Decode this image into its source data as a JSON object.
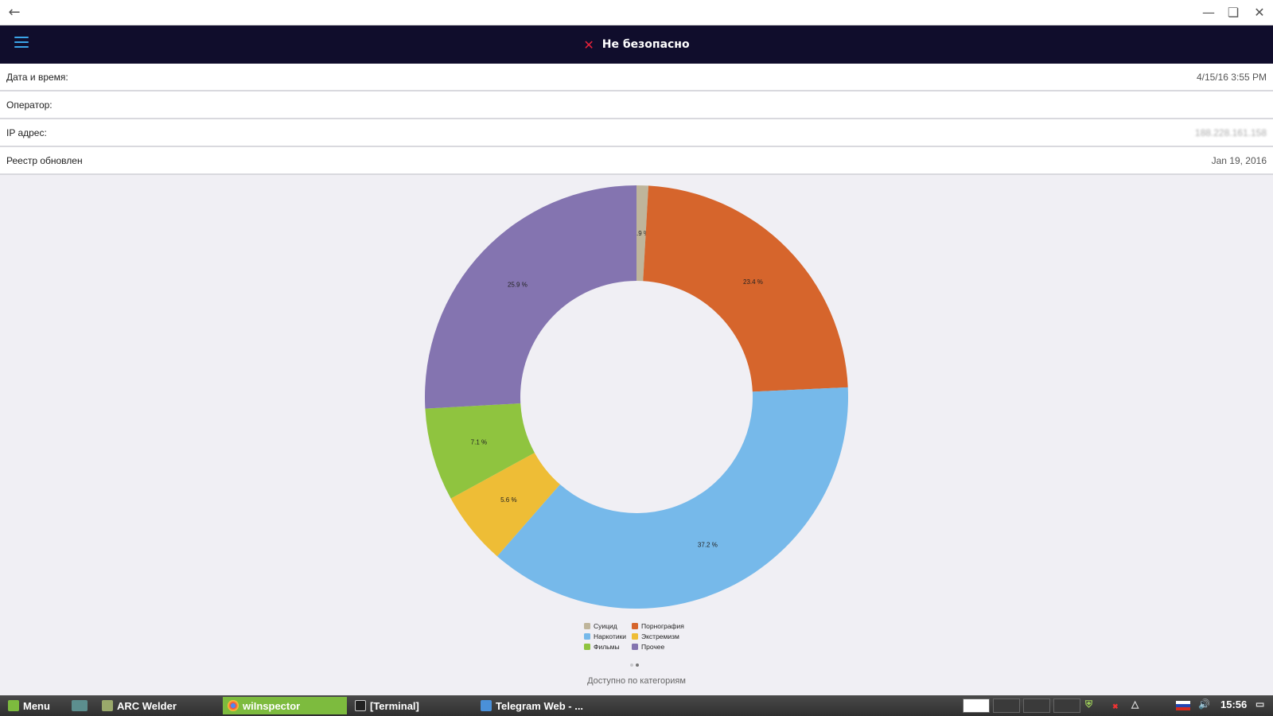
{
  "window": {
    "back_icon": "arrow-left-icon",
    "minimize_icon": "minimize-icon",
    "maximize_icon": "maximize-icon",
    "close_icon": "close-icon"
  },
  "header": {
    "menu_icon": "hamburger-icon",
    "status_icon": "cross-icon",
    "status_text": "Не безопасно",
    "status_color": "#e8223a",
    "bg_color": "#100d2c"
  },
  "info": [
    {
      "label": "Дата и время:",
      "value": "4/15/16 3:55 PM"
    },
    {
      "label": "Оператор:",
      "value": ""
    },
    {
      "label": "IP адрес:",
      "value": "188.228.161.158"
    },
    {
      "label": "Реестр обновлен",
      "value": "Jan 19, 2016"
    }
  ],
  "chart_data": {
    "type": "pie",
    "donut": true,
    "slices": [
      {
        "name": "Суицид",
        "value": 0.9,
        "label": "0.9 %",
        "color": "#bfb59b"
      },
      {
        "name": "Порнография",
        "value": 23.4,
        "label": "23.4 %",
        "color": "#d6652c"
      },
      {
        "name": "Наркотики",
        "value": 37.2,
        "label": "37.2 %",
        "color": "#76b9ea"
      },
      {
        "name": "Экстремизм",
        "value": 5.6,
        "label": "5.6 %",
        "color": "#eebd36"
      },
      {
        "name": "Фильмы",
        "value": 7.1,
        "label": "7.1 %",
        "color": "#8fc43f"
      },
      {
        "name": "Прочее",
        "value": 25.9,
        "label": "25.9 %",
        "color": "#8474b0"
      }
    ],
    "legend_placement": "bottom"
  },
  "pager": {
    "pages": 2,
    "current": 2
  },
  "caption": "Доступно по категориям",
  "taskbar": {
    "menu_label": "Menu",
    "items": [
      {
        "label": "ARC Welder",
        "icon": "arc-welder-icon",
        "active": false
      },
      {
        "label": "wiInspector",
        "icon": "chrome-icon",
        "active": true
      },
      {
        "label": "[Terminal]",
        "icon": "terminal-icon",
        "active": false
      },
      {
        "label": "Telegram Web - ...",
        "icon": "telegram-icon",
        "active": false
      }
    ],
    "clock": "15:56"
  }
}
